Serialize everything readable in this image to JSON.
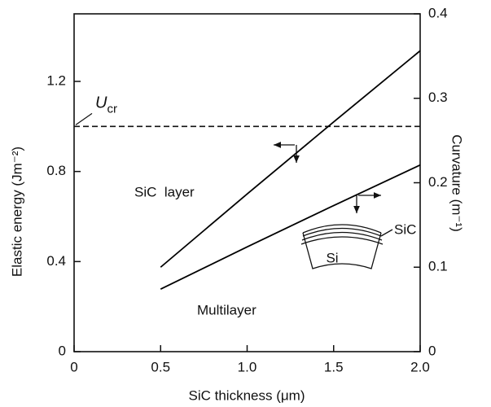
{
  "chart_data": {
    "type": "line",
    "x_label": "SiC thickness (μm)",
    "y_label": "Elastic energy (Jm⁻²)",
    "y2_label": "Curvature (m⁻¹)",
    "x": [
      0.5,
      1.0,
      1.5,
      2.0
    ],
    "series": [
      {
        "name": "SiC  layer",
        "color": "#000000",
        "values": [
          0.375,
          0.7,
          1.02,
          1.336
        ]
      },
      {
        "name": "Multilayer",
        "color": "#000000",
        "axis": "y2",
        "values": [
          0.074,
          0.124,
          0.173,
          0.221
        ]
      }
    ],
    "reference_line": {
      "value": 1.0,
      "label": "U",
      "label_sub": "cr"
    },
    "inset_labels": [
      "SiC",
      "Si"
    ],
    "xlim": [
      0,
      2.0
    ],
    "xticks": [
      0,
      0.5,
      {
        "value": 1.0,
        "label": "1.0"
      },
      1.5,
      {
        "value": 2.0,
        "label": "2.0"
      }
    ],
    "ylim": [
      0,
      1.5
    ],
    "yticks": [
      0,
      0.4,
      0.8,
      1.2
    ],
    "y2lim": [
      0,
      0.4
    ],
    "y2ticks": [
      0,
      0.1,
      0.2,
      0.3,
      0.4
    ]
  }
}
